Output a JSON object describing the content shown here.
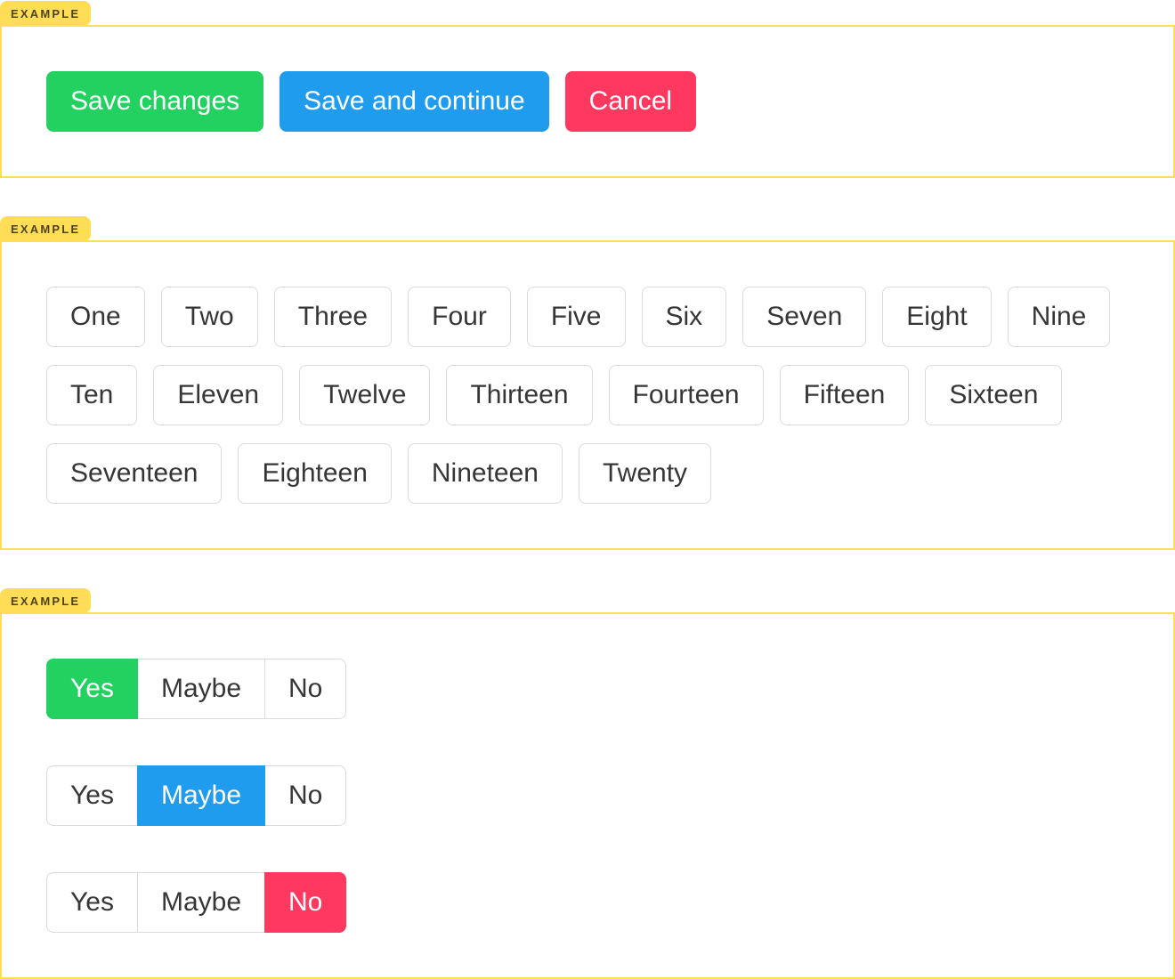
{
  "colors": {
    "yellow": "#ffdd57",
    "success": "#23d160",
    "info": "#209cee",
    "danger": "#ff3860",
    "btn_border": "#dbdbdb",
    "btn_text": "#363636",
    "label_text": "rgba(0,0,0,0.7)"
  },
  "examples": [
    {
      "label": "EXAMPLE",
      "buttons": [
        {
          "label": "Save changes",
          "variant": "success"
        },
        {
          "label": "Save and continue",
          "variant": "info"
        },
        {
          "label": "Cancel",
          "variant": "danger"
        }
      ]
    },
    {
      "label": "EXAMPLE",
      "buttons": [
        {
          "label": "One",
          "variant": "default"
        },
        {
          "label": "Two",
          "variant": "default"
        },
        {
          "label": "Three",
          "variant": "default"
        },
        {
          "label": "Four",
          "variant": "default"
        },
        {
          "label": "Five",
          "variant": "default"
        },
        {
          "label": "Six",
          "variant": "default"
        },
        {
          "label": "Seven",
          "variant": "default"
        },
        {
          "label": "Eight",
          "variant": "default"
        },
        {
          "label": "Nine",
          "variant": "default"
        },
        {
          "label": "Ten",
          "variant": "default"
        },
        {
          "label": "Eleven",
          "variant": "default"
        },
        {
          "label": "Twelve",
          "variant": "default"
        },
        {
          "label": "Thirteen",
          "variant": "default"
        },
        {
          "label": "Fourteen",
          "variant": "default"
        },
        {
          "label": "Fifteen",
          "variant": "default"
        },
        {
          "label": "Sixteen",
          "variant": "default"
        },
        {
          "label": "Seventeen",
          "variant": "default"
        },
        {
          "label": "Eighteen",
          "variant": "default"
        },
        {
          "label": "Nineteen",
          "variant": "default"
        },
        {
          "label": "Twenty",
          "variant": "default"
        }
      ]
    },
    {
      "label": "EXAMPLE",
      "groups": [
        [
          {
            "label": "Yes",
            "variant": "success"
          },
          {
            "label": "Maybe",
            "variant": "default"
          },
          {
            "label": "No",
            "variant": "default"
          }
        ],
        [
          {
            "label": "Yes",
            "variant": "default"
          },
          {
            "label": "Maybe",
            "variant": "info"
          },
          {
            "label": "No",
            "variant": "default"
          }
        ],
        [
          {
            "label": "Yes",
            "variant": "default"
          },
          {
            "label": "Maybe",
            "variant": "default"
          },
          {
            "label": "No",
            "variant": "danger"
          }
        ]
      ]
    }
  ]
}
